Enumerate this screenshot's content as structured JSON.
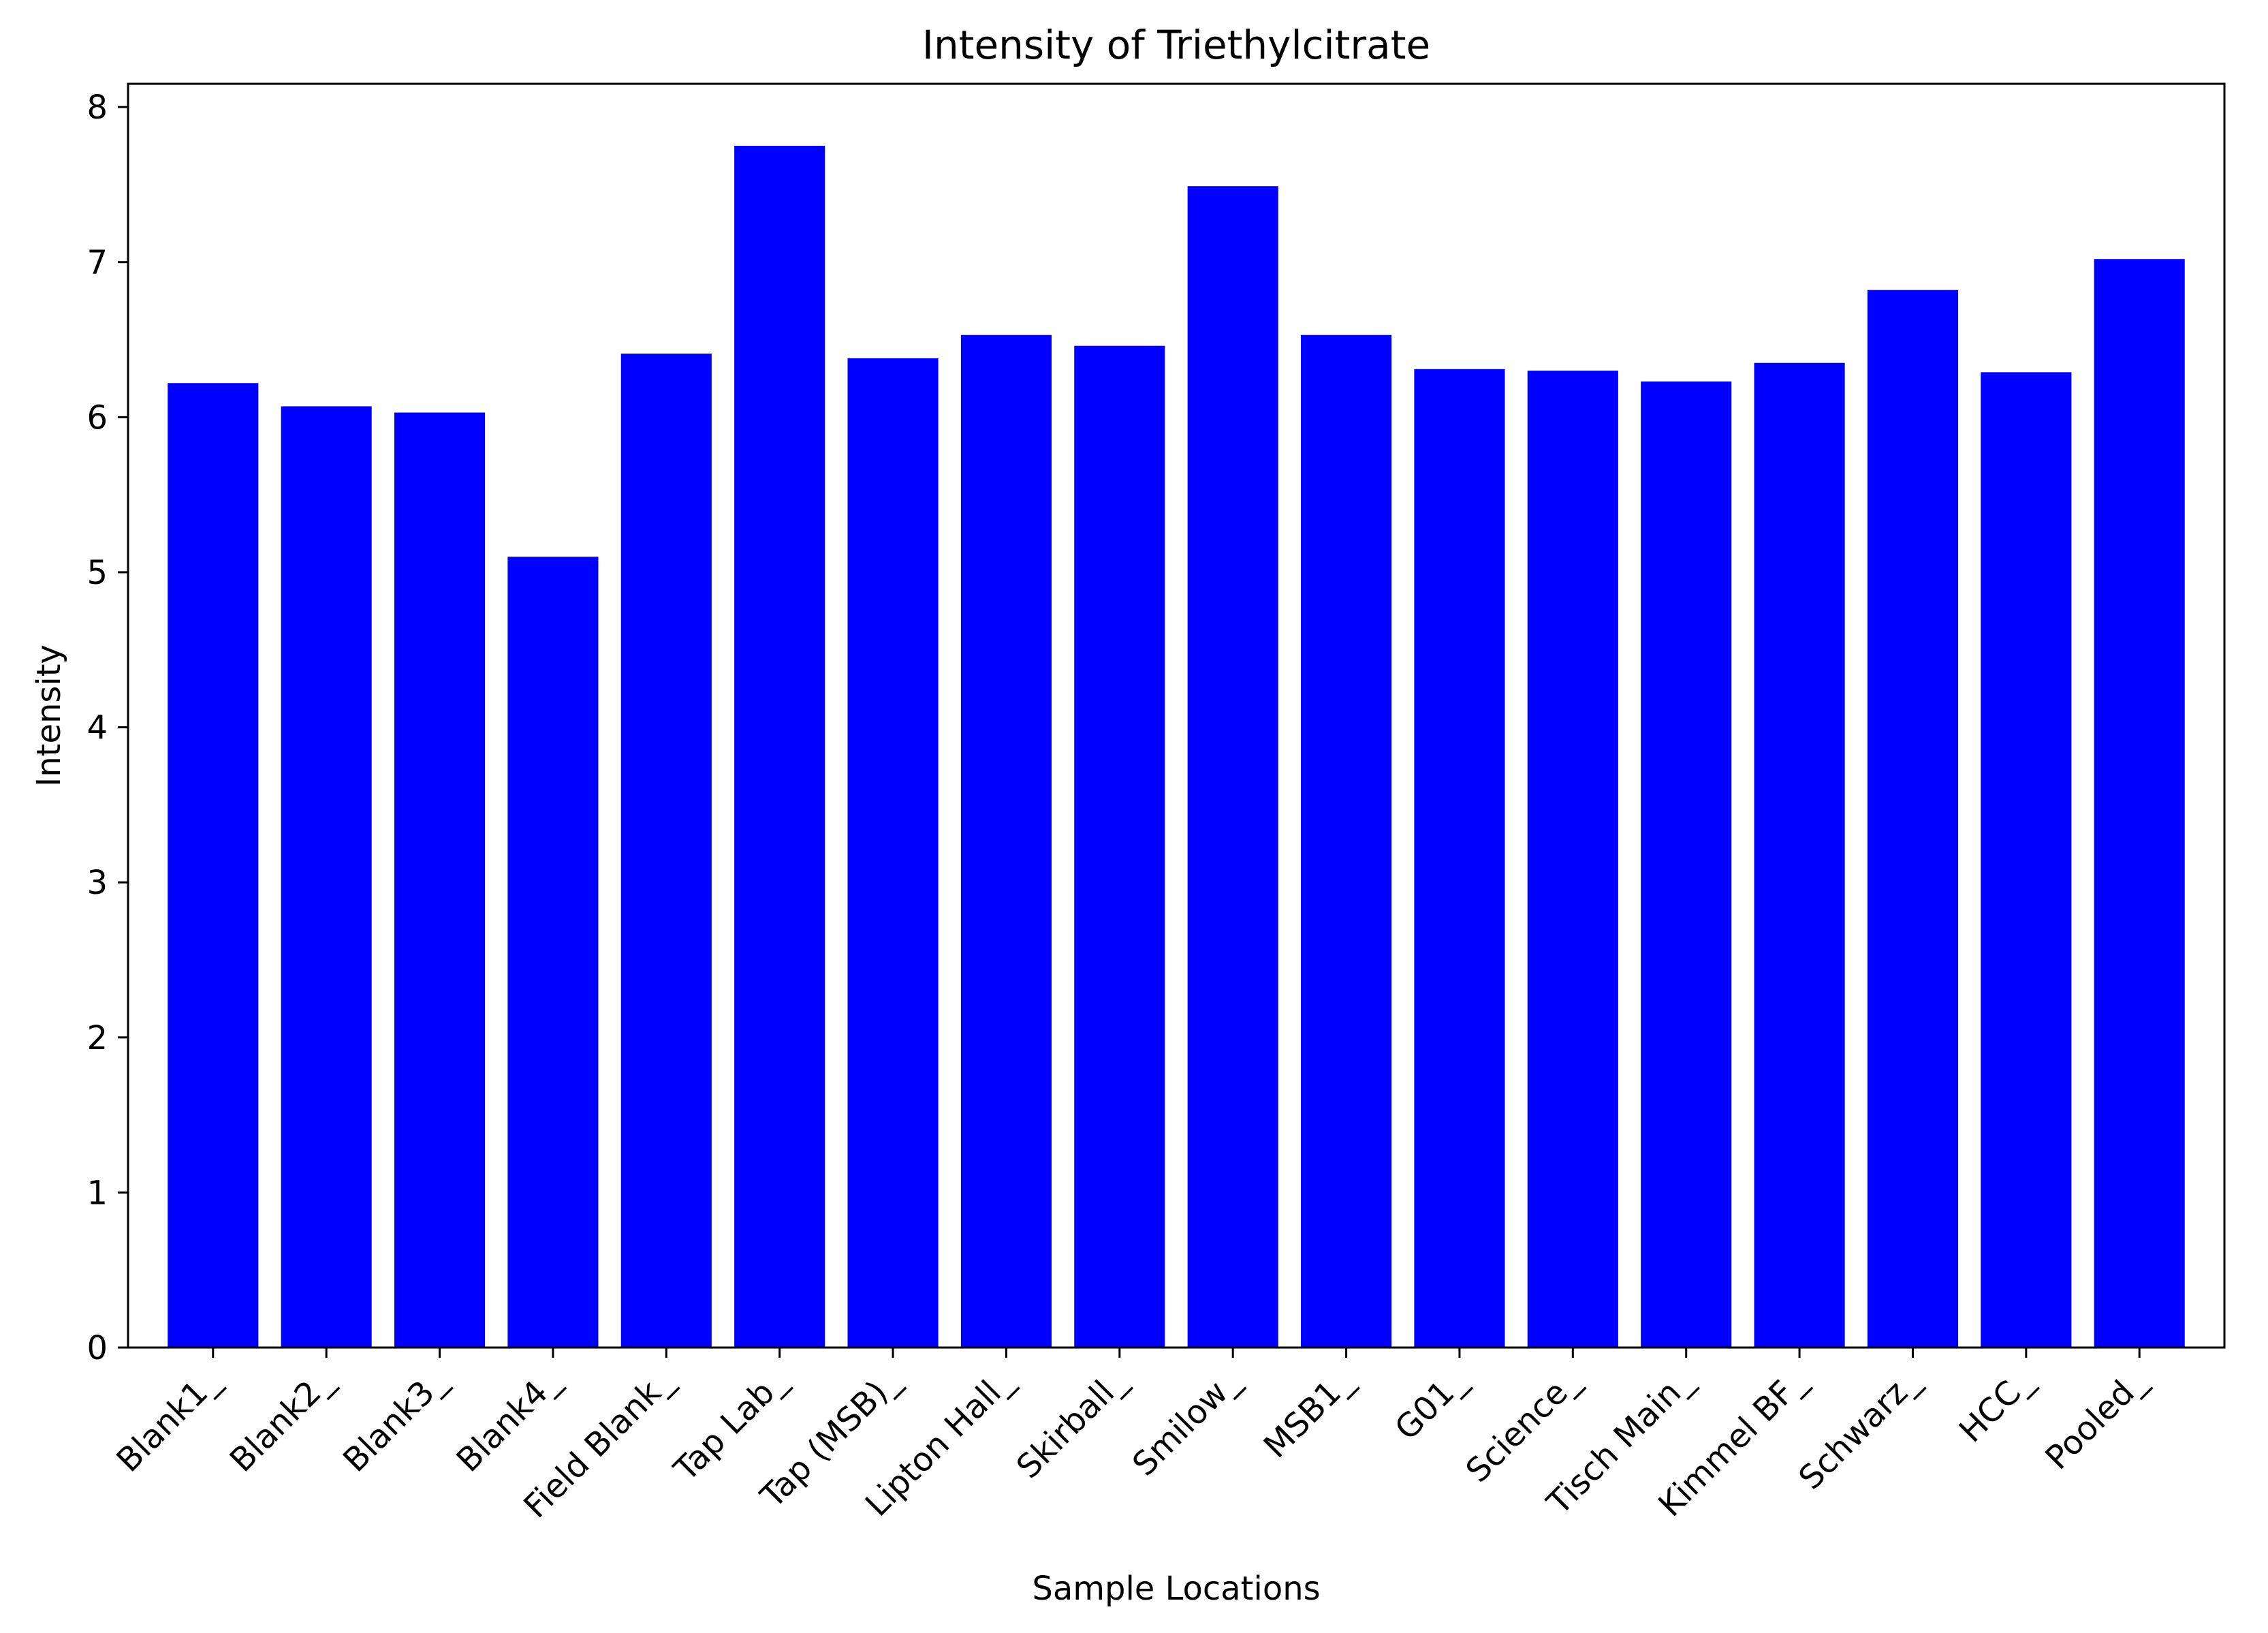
{
  "chart_data": {
    "type": "bar",
    "title": "Intensity of Triethylcitrate",
    "xlabel": "Sample Locations",
    "ylabel": "Intensity",
    "categories": [
      "Blank1_",
      "Blank2_",
      "Blank3_",
      "Blank4_",
      "Field Blank_",
      "Tap Lab_",
      "Tap (MSB)_",
      "Lipton Hall_",
      "Skirball_",
      "Smilow_",
      "MSB1_",
      "G01_",
      "Science_",
      "Tisch Main_",
      "Kimmel BF_",
      "Schwarz_",
      "HCC_",
      "Pooled_"
    ],
    "values": [
      6.22,
      6.07,
      6.03,
      5.1,
      6.41,
      7.75,
      6.38,
      6.53,
      6.46,
      7.49,
      6.53,
      6.31,
      6.3,
      6.23,
      6.35,
      6.82,
      6.29,
      7.02
    ],
    "ylim": [
      0,
      8.15
    ],
    "yticks": [
      0,
      1,
      2,
      3,
      4,
      5,
      6,
      7,
      8
    ],
    "bar_color": "#0000ff",
    "grid": false
  }
}
